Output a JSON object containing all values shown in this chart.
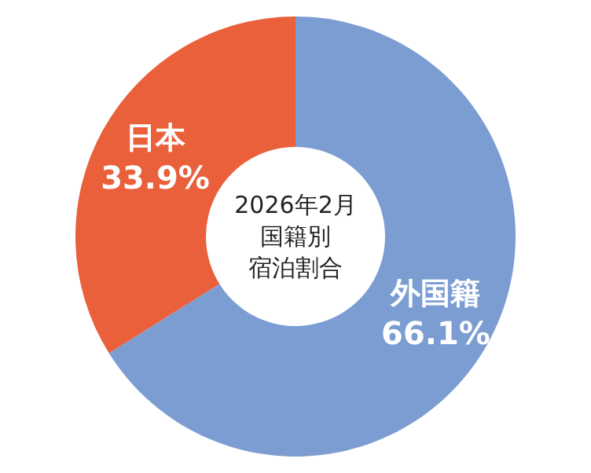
{
  "chart_data": {
    "type": "donut",
    "title": [
      "2026年2月",
      "国籍別",
      "宿泊割合"
    ],
    "categories": [
      "外国籍",
      "日本"
    ],
    "values": [
      66.1,
      33.9
    ],
    "colors": [
      "#7b9dd2",
      "#e9603b"
    ],
    "value_labels": [
      "66.1%",
      "33.9%"
    ]
  }
}
